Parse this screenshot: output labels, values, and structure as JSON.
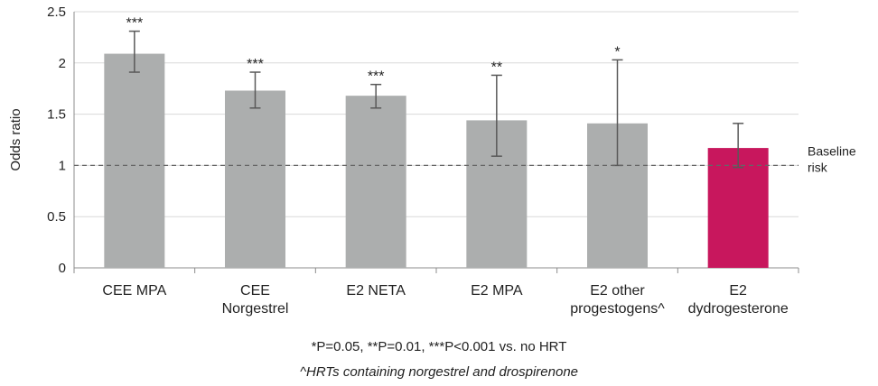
{
  "chart_data": {
    "type": "bar",
    "ylabel": "Odds ratio",
    "ylim": [
      0,
      2.5
    ],
    "yticks": [
      "0",
      "0.5",
      "1",
      "1.5",
      "2",
      "2.5"
    ],
    "grid": true,
    "categories": [
      [
        "CEE MPA"
      ],
      [
        "CEE",
        "Norgestrel"
      ],
      [
        "E2 NETA"
      ],
      [
        "E2 MPA"
      ],
      [
        "E2 other",
        "progestogens^"
      ],
      [
        "E2",
        "dydrogesterone"
      ]
    ],
    "values": [
      2.09,
      1.73,
      1.68,
      1.44,
      1.41,
      1.17
    ],
    "error_low": [
      1.91,
      1.56,
      1.56,
      1.09,
      1.0,
      0.98
    ],
    "error_high": [
      2.31,
      1.91,
      1.79,
      1.88,
      2.03,
      1.41
    ],
    "significance": [
      "***",
      "***",
      "***",
      "**",
      "*",
      ""
    ],
    "bar_colors": [
      "#acaeae",
      "#acaeae",
      "#acaeae",
      "#acaeae",
      "#acaeae",
      "#c8175d"
    ],
    "baseline": {
      "value": 1,
      "label": [
        "Baseline",
        "risk"
      ]
    }
  },
  "footnotes": {
    "significance": "*P=0.05, **P=0.01, ***P<0.001 vs. no HRT",
    "hrt_note": "^HRTs containing norgestrel and drospirenone"
  }
}
